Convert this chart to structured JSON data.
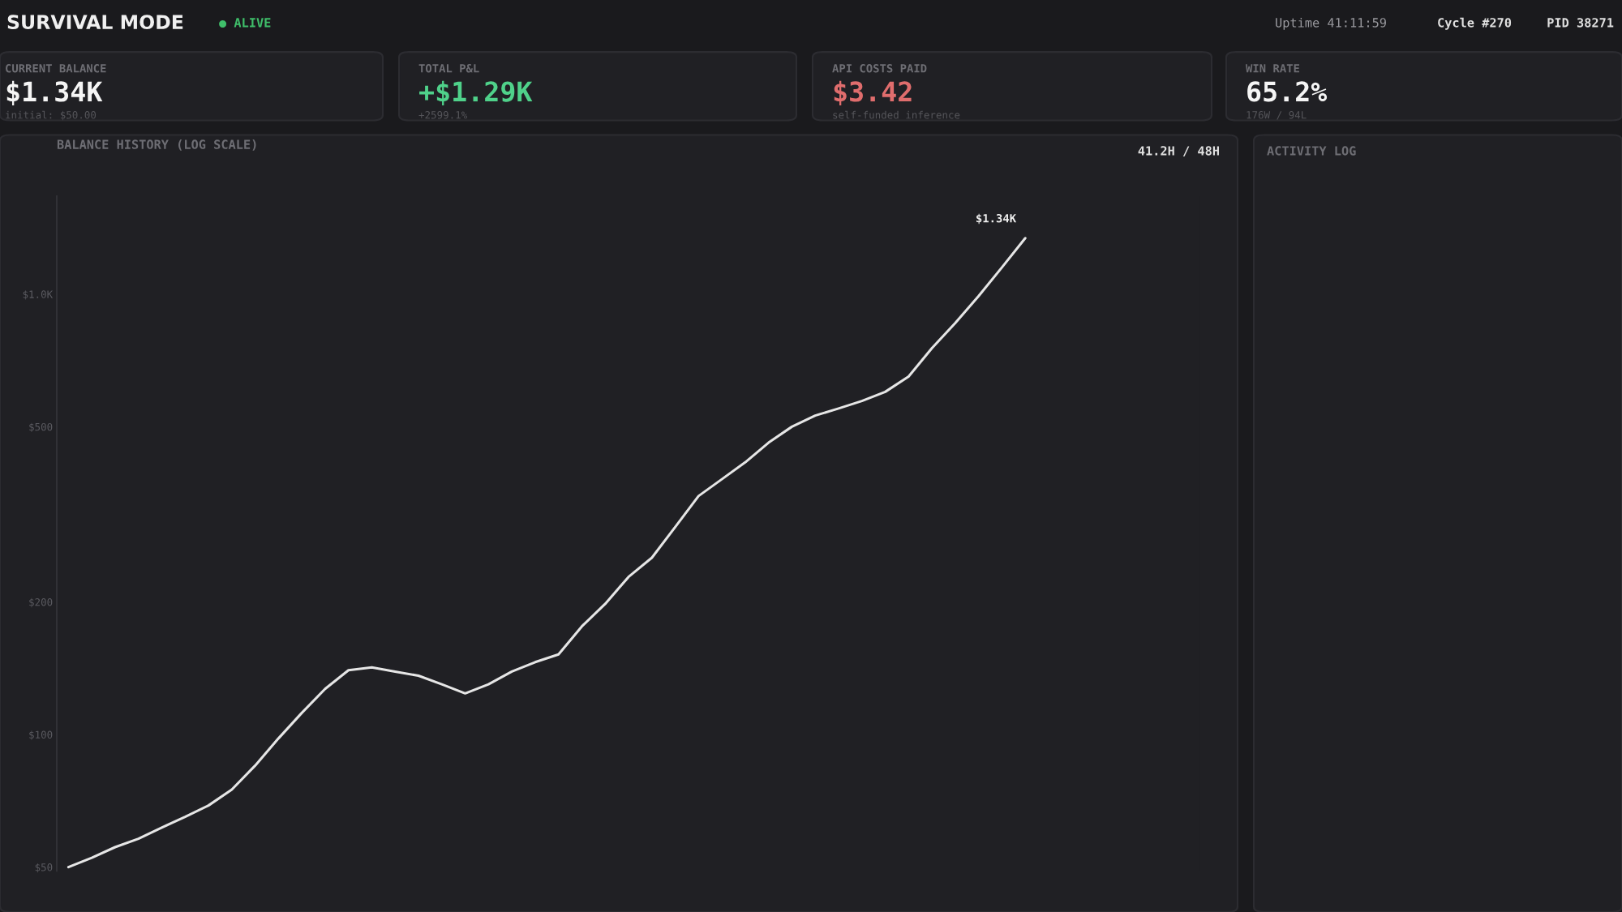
{
  "chart_data": {
    "type": "line",
    "title": "BALANCE HISTORY (LOG SCALE)",
    "categories": [
      null,
      null,
      null,
      null,
      null,
      null,
      null,
      null,
      null,
      null,
      null,
      null,
      null,
      null,
      null,
      null,
      null,
      null,
      null,
      null,
      null,
      null,
      null,
      null,
      null,
      null,
      null,
      null,
      null,
      null,
      null,
      null,
      null,
      null,
      null,
      null,
      null,
      null,
      null,
      null,
      null,
      null,
      null,
      null,
      null,
      null,
      null,
      null,
      null
    ],
    "series": [
      {
        "color": "#e6e6e6",
        "values": [
          50,
          52.5,
          55.5,
          58,
          61.5,
          65,
          69,
          75,
          85,
          98,
          112,
          127,
          140,
          142,
          139,
          136,
          130,
          124,
          130,
          139,
          146,
          152,
          176,
          198,
          228,
          252,
          296,
          348,
          380,
          415,
          460,
          500,
          530,
          550,
          572,
          600,
          650,
          754,
          860,
          990,
          1150,
          1340,
          null,
          null,
          null,
          null,
          null,
          null,
          null
        ]
      }
    ],
    "log": "y",
    "ylim": [
      49,
      1670
    ],
    "yticks": [
      {
        "value": 50,
        "label": "$50"
      },
      {
        "value": 100,
        "label": "$100"
      },
      {
        "value": 200,
        "label": "$200"
      },
      {
        "value": 500,
        "label": "$500"
      },
      {
        "value": 1000,
        "label": "$1.0K"
      }
    ],
    "tick_labels": "y",
    "grid": false,
    "legend": false,
    "annotations": [
      "$1.34K",
      "SURVIVAL MODE",
      "● ALIVE",
      "Uptime 41:11:59",
      "Cycle #270",
      "PID 38271",
      "CURRENT BALANCE",
      "$1.34K",
      "initial: $50.00",
      "TOTAL P&L",
      "+$1.29K",
      "+2599.1%",
      "API COSTS PAID",
      "$3.42",
      "self-funded inference",
      "WIN RATE",
      "65.2%",
      "176W / 94L",
      "41.2H / 48H",
      "ACTIVITY LOG"
    ]
  }
}
